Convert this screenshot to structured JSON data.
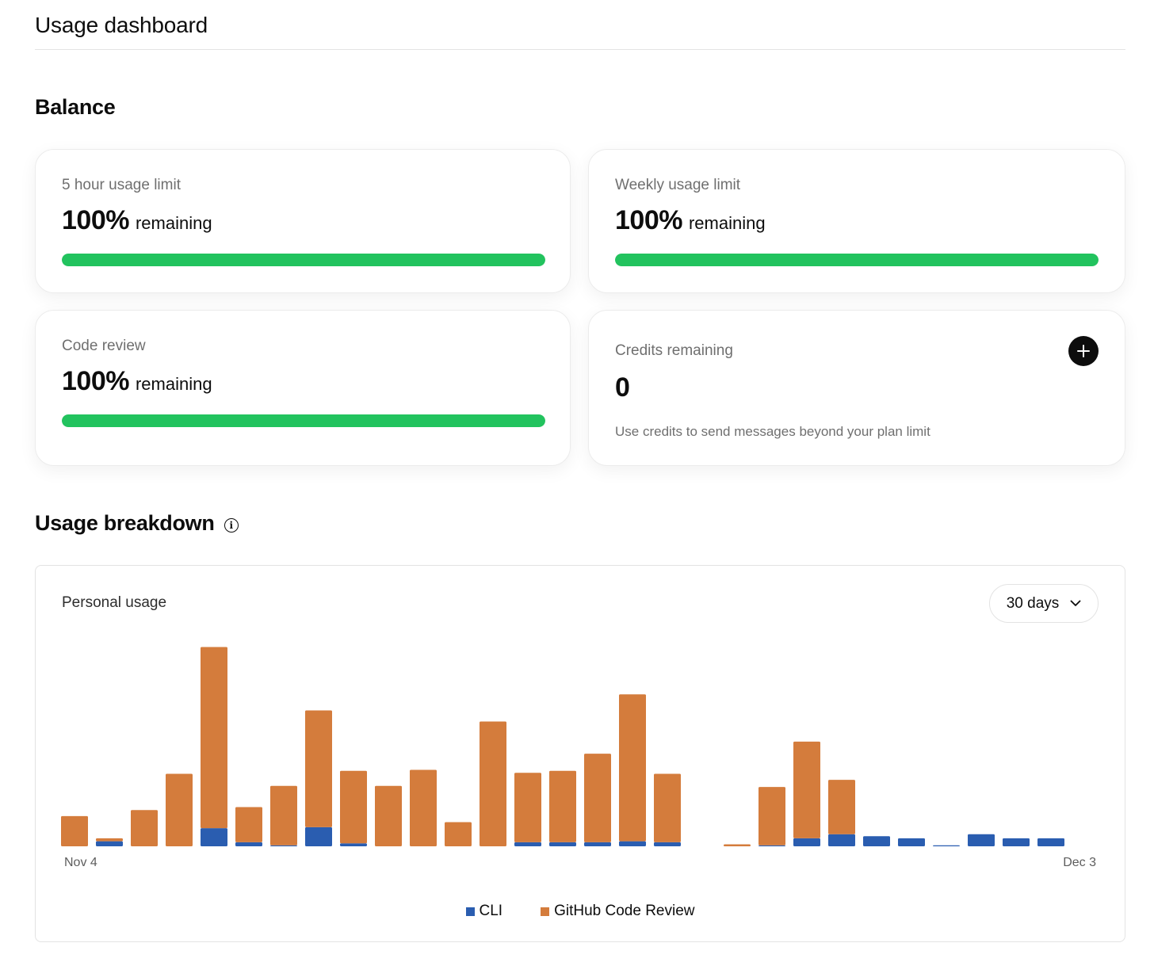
{
  "page": {
    "title": "Usage dashboard"
  },
  "balance": {
    "title": "Balance",
    "cards": [
      {
        "label": "5 hour usage limit",
        "value": "100%",
        "suffix": "remaining",
        "fraction": 1.0
      },
      {
        "label": "Weekly usage limit",
        "value": "100%",
        "suffix": "remaining",
        "fraction": 1.0
      },
      {
        "label": "Code review",
        "value": "100%",
        "suffix": "remaining",
        "fraction": 1.0
      }
    ],
    "credits": {
      "label": "Credits remaining",
      "value": "0",
      "note": "Use credits to send messages beyond your plan limit",
      "add_icon": "plus-icon"
    }
  },
  "breakdown": {
    "title": "Usage breakdown",
    "info_icon": "info-icon",
    "chart_label": "Personal usage",
    "range": {
      "selected": "30 days",
      "icon": "chevron-down-icon"
    }
  },
  "chart_data": {
    "type": "bar",
    "stacked": true,
    "x_start_label": "Nov 4",
    "x_end_label": "Dec 3",
    "colors": {
      "CLI": "#2a5db0",
      "GitHub Code Review": "#d47c3c"
    },
    "series": [
      {
        "name": "CLI",
        "values": [
          0,
          0.5,
          0,
          0,
          1.8,
          0.4,
          0.1,
          1.9,
          0.3,
          0,
          0,
          0,
          0,
          0.4,
          0.4,
          0.4,
          0.5,
          0.4,
          0,
          0,
          0.1,
          0.8,
          1.2,
          1.0,
          0.8,
          0.1,
          1.2,
          0.8,
          0.8
        ]
      },
      {
        "name": "GitHub Code Review",
        "values": [
          3.0,
          0.3,
          3.6,
          7.2,
          18.0,
          3.5,
          5.9,
          11.6,
          7.2,
          6.0,
          7.6,
          2.4,
          12.4,
          6.9,
          7.1,
          8.8,
          14.6,
          6.8,
          0,
          0.2,
          5.8,
          9.6,
          5.4,
          0,
          0,
          0,
          0,
          0,
          0
        ]
      }
    ],
    "legend": [
      "CLI",
      "GitHub Code Review"
    ],
    "legend_placement": "bottom-center"
  }
}
